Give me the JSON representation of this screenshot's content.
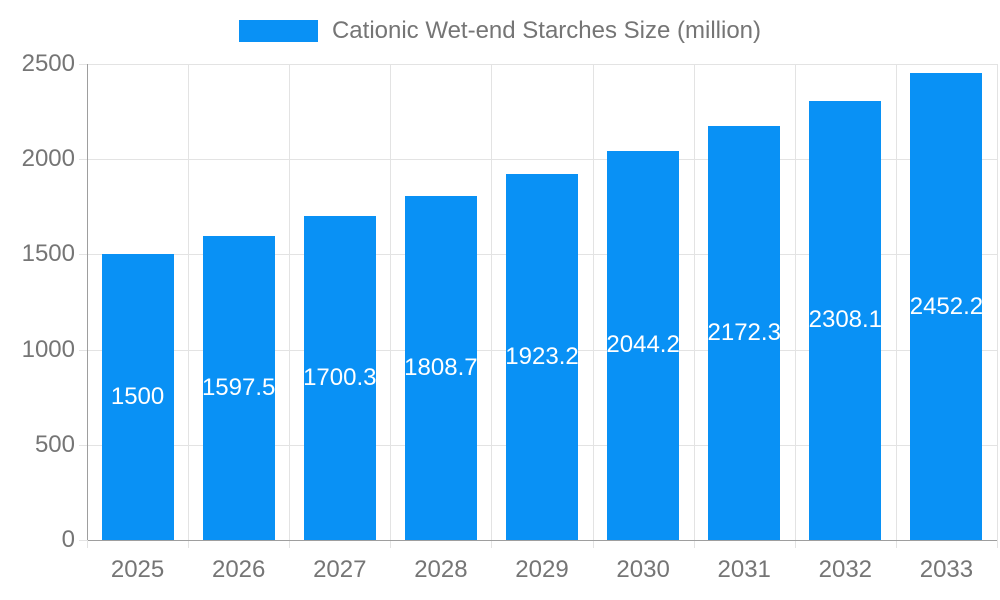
{
  "chart_data": {
    "type": "bar",
    "title": "Cationic Wet-end Starches Size (million)",
    "categories": [
      "2025",
      "2026",
      "2027",
      "2028",
      "2029",
      "2030",
      "2031",
      "2032",
      "2033"
    ],
    "values": [
      1500,
      1597.5,
      1700.3,
      1808.7,
      1923.2,
      2044.2,
      2172.3,
      2308.1,
      2452.2
    ],
    "value_labels": [
      "1500",
      "1597.5",
      "1700.3",
      "1808.7",
      "1923.2",
      "2044.2",
      "2172.3",
      "2308.1",
      "2452.2"
    ],
    "xlabel": "",
    "ylabel": "",
    "ylim": [
      0,
      2500
    ],
    "yticks": [
      0,
      500,
      1000,
      1500,
      2000,
      2500
    ],
    "grid": true,
    "legend_position": "top",
    "bar_value_label_position": "center",
    "colors": {
      "bar": "#0991F5",
      "label_text": "#FFFFFF",
      "axis_text": "#757575",
      "gridline": "#E3E3E3",
      "axis_line": "#9E9E9E",
      "background": "#FFFFFF"
    }
  }
}
